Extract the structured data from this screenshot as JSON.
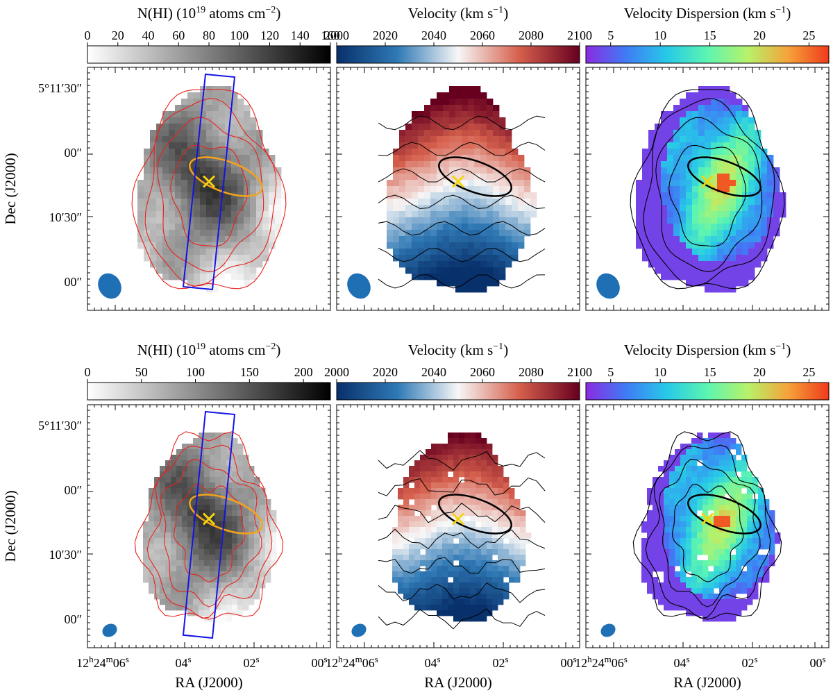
{
  "figure": {
    "rows": [
      {
        "panels": [
          {
            "map": "nhi",
            "cbar_label_main": "N(HI) (10",
            "cbar_label_sup": "19",
            "cbar_label_mid": " atoms cm",
            "cbar_label_sup2": "−2",
            "cbar_label_end": ")",
            "cbar_ticks": [
              "0",
              "20",
              "40",
              "60",
              "80",
              "100",
              "120",
              "140",
              "160"
            ],
            "cbar_range": [
              0,
              160
            ],
            "colormap": [
              "#ffffff",
              "#000000"
            ]
          },
          {
            "map": "velocity",
            "cbar_label_main": "Velocity (km s",
            "cbar_label_sup": "−1",
            "cbar_label_end": ")",
            "cbar_ticks": [
              "2000",
              "2020",
              "2040",
              "2060",
              "2080",
              "2100"
            ],
            "cbar_range": [
              2000,
              2100
            ],
            "colormap": [
              "#08306b",
              "#2f79b5",
              "#f7f7f7",
              "#d6604d",
              "#67001f"
            ]
          },
          {
            "map": "dispersion",
            "cbar_label_main": "Velocity Dispersion (km s",
            "cbar_label_sup": "−1",
            "cbar_label_end": ")",
            "cbar_ticks": [
              "5",
              "10",
              "15",
              "20",
              "25"
            ],
            "cbar_range": [
              2.5,
              27
            ],
            "colormap": [
              "#8a2be2",
              "#3f7cf5",
              "#27c9e8",
              "#5cf5b1",
              "#b7f26a",
              "#f6a23a",
              "#ef3a1b"
            ]
          }
        ]
      },
      {
        "panels": [
          {
            "map": "nhi",
            "cbar_label_main": "N(HI) (10",
            "cbar_label_sup": "19",
            "cbar_label_mid": " atoms cm",
            "cbar_label_sup2": "−2",
            "cbar_label_end": ")",
            "cbar_ticks": [
              "0",
              "50",
              "100",
              "150",
              "200"
            ],
            "cbar_range": [
              0,
              225
            ],
            "colormap": [
              "#ffffff",
              "#000000"
            ]
          },
          {
            "map": "velocity",
            "cbar_label_main": "Velocity (km s",
            "cbar_label_sup": "−1",
            "cbar_label_end": ")",
            "cbar_ticks": [
              "2000",
              "2020",
              "2040",
              "2060",
              "2080",
              "2100"
            ],
            "cbar_range": [
              2000,
              2100
            ],
            "colormap": [
              "#08306b",
              "#2f79b5",
              "#f7f7f7",
              "#d6604d",
              "#67001f"
            ]
          },
          {
            "map": "dispersion",
            "cbar_label_main": "Velocity Dispersion (km s",
            "cbar_label_sup": "−1",
            "cbar_label_end": ")",
            "cbar_ticks": [
              "5",
              "10",
              "15",
              "20",
              "25"
            ],
            "cbar_range": [
              2.5,
              27
            ],
            "colormap": [
              "#8a2be2",
              "#3f7cf5",
              "#27c9e8",
              "#5cf5b1",
              "#b7f26a",
              "#f6a23a",
              "#ef3a1b"
            ]
          }
        ]
      }
    ],
    "dec_ticks": [
      "5°11′30″",
      "00″",
      "10′30″",
      "00″"
    ],
    "ylabel": "Dec (J2000)",
    "xlabel": "RA (J2000)",
    "ra_ticks": [
      {
        "main": "12",
        "sup1": "h",
        "mid": "24",
        "sup2": "m",
        "mid2": "06",
        "sup3": "s"
      },
      {
        "main": "04",
        "sup1": "s"
      },
      {
        "main": "02",
        "sup1": "s"
      },
      {
        "main": "00",
        "sup1": "s"
      }
    ],
    "colors": {
      "contour_red": "#e8221c",
      "slit_blue": "#1414e6",
      "ellipse_orange": "#f5a41a",
      "marker_yellow": "#f5d40f",
      "beam_blue": "#1f6fb5"
    }
  }
}
